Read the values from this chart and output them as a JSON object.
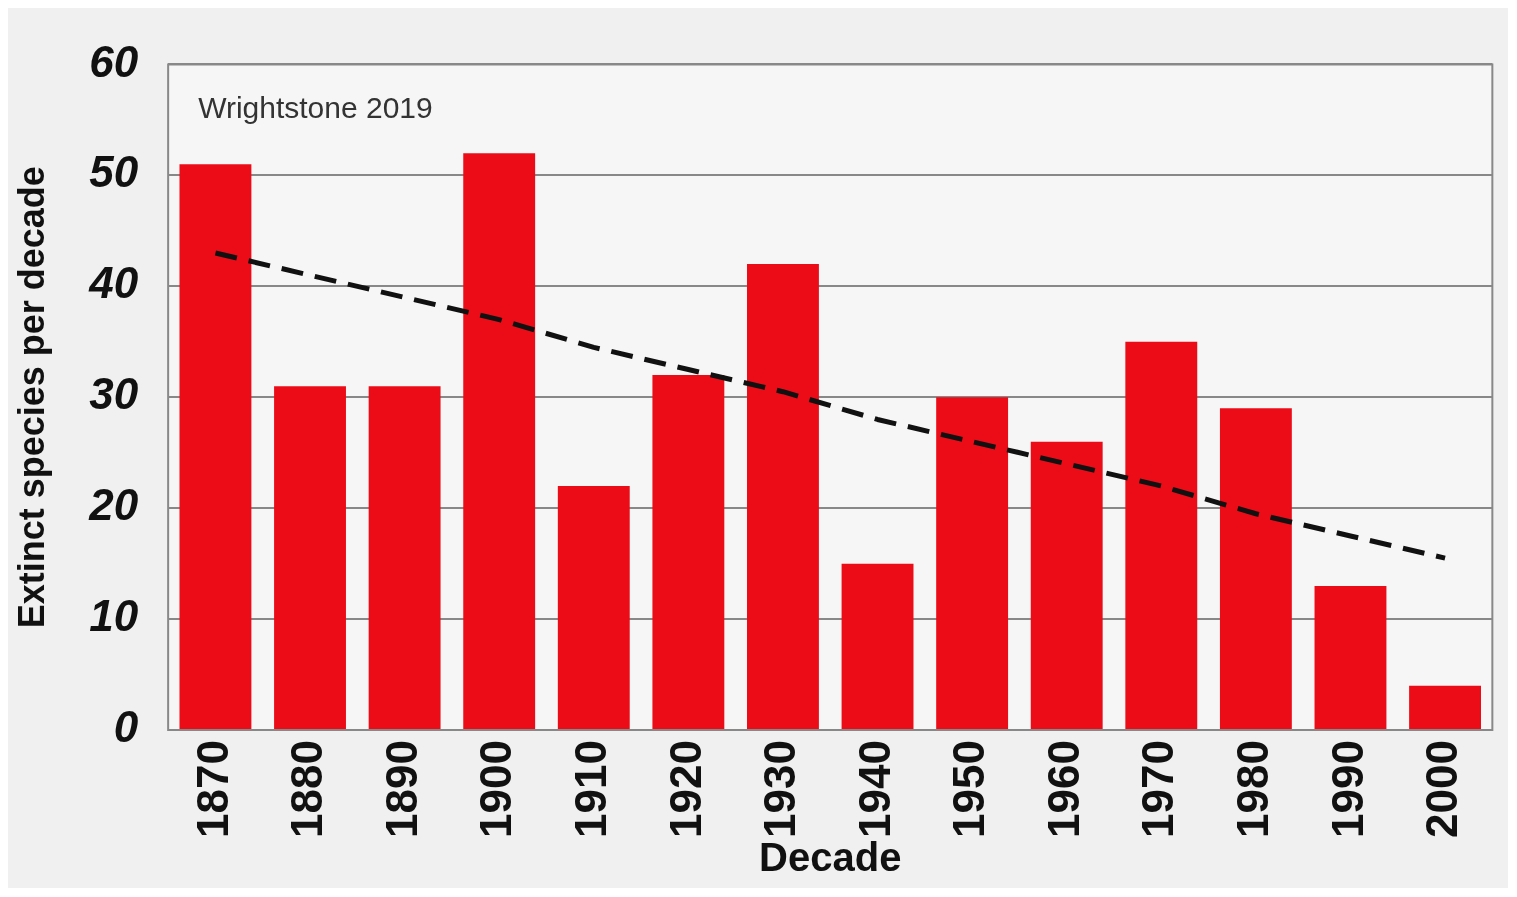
{
  "chart_data": {
    "type": "bar",
    "xlabel": "Decade",
    "ylabel": "Extinct species per decade",
    "categories": [
      "1870",
      "1880",
      "1890",
      "1900",
      "1910",
      "1920",
      "1930",
      "1940",
      "1950",
      "1960",
      "1970",
      "1980",
      "1990",
      "2000"
    ],
    "series": [
      {
        "color": "#ec0c17",
        "values": [
          51,
          31,
          31,
          52,
          22,
          32,
          42,
          15,
          30,
          26,
          35,
          29,
          13,
          4
        ]
      },
      {
        "type": "line",
        "color": "#111111",
        "line_style": "dashed",
        "marker": "none",
        "values": [
          43,
          41,
          39,
          37,
          34.5,
          32.5,
          30.5,
          28,
          26,
          24,
          22,
          19.5,
          17.5,
          15.5
        ]
      }
    ],
    "ylim": [
      0,
      60
    ],
    "yticks": [
      0,
      10,
      20,
      30,
      40,
      50,
      60
    ],
    "grid": "y",
    "legend": false,
    "annotations": [
      "Wrightstone 2019"
    ]
  }
}
